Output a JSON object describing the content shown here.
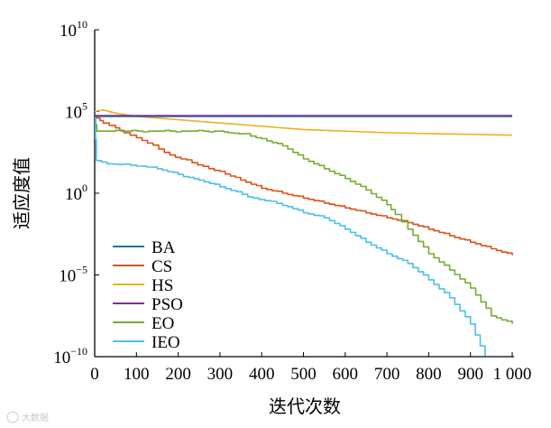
{
  "chart_data": {
    "type": "line",
    "title": "",
    "xlabel": "迭代次数",
    "ylabel": "适应度值",
    "xlim": [
      0,
      1000
    ],
    "ylim_log10": [
      -10,
      10
    ],
    "x_ticks": [
      0,
      100,
      200,
      300,
      400,
      500,
      600,
      700,
      800,
      900,
      1000
    ],
    "x_tick_labels": [
      "0",
      "100",
      "200",
      "300",
      "400",
      "500",
      "600",
      "700",
      "800",
      "900",
      "1 000"
    ],
    "y_ticks_log10": [
      -10,
      -5,
      0,
      5,
      10
    ],
    "y_tick_labels": [
      {
        "base": "10",
        "exp": "−10"
      },
      {
        "base": "10",
        "exp": "−5"
      },
      {
        "base": "10",
        "exp": "0"
      },
      {
        "base": "10",
        "exp": "5"
      },
      {
        "base": "10",
        "exp": "10"
      }
    ],
    "legend_position": "bottom-left",
    "series": [
      {
        "name": "BA",
        "color": "#1f6fb2",
        "step": false,
        "points": [
          [
            0,
            4.7
          ],
          [
            3,
            4.7
          ],
          [
            1000,
            4.7
          ]
        ]
      },
      {
        "name": "CS",
        "color": "#d95319",
        "step": true,
        "points": [
          [
            0,
            4.7
          ],
          [
            5,
            4.6
          ],
          [
            20,
            4.3
          ],
          [
            50,
            4.0
          ],
          [
            70,
            3.7
          ],
          [
            100,
            3.4
          ],
          [
            140,
            2.9
          ],
          [
            180,
            2.3
          ],
          [
            220,
            2.0
          ],
          [
            260,
            1.6
          ],
          [
            300,
            1.3
          ],
          [
            350,
            0.8
          ],
          [
            400,
            0.3
          ],
          [
            450,
            0
          ],
          [
            500,
            -0.3
          ],
          [
            550,
            -0.6
          ],
          [
            600,
            -0.9
          ],
          [
            650,
            -1.2
          ],
          [
            700,
            -1.5
          ],
          [
            750,
            -1.8
          ],
          [
            800,
            -2.2
          ],
          [
            850,
            -2.6
          ],
          [
            900,
            -3.0
          ],
          [
            950,
            -3.4
          ],
          [
            1000,
            -3.8
          ]
        ]
      },
      {
        "name": "HS",
        "color": "#edb120",
        "step": false,
        "points": [
          [
            0,
            5.0
          ],
          [
            20,
            5.1
          ],
          [
            50,
            4.9
          ],
          [
            100,
            4.7
          ],
          [
            150,
            4.6
          ],
          [
            200,
            4.5
          ],
          [
            300,
            4.3
          ],
          [
            400,
            4.1
          ],
          [
            500,
            3.9
          ],
          [
            600,
            3.8
          ],
          [
            700,
            3.7
          ],
          [
            800,
            3.65
          ],
          [
            900,
            3.6
          ],
          [
            1000,
            3.55
          ]
        ]
      },
      {
        "name": "PSO",
        "color": "#7e2f8e",
        "step": false,
        "points": [
          [
            0,
            4.75
          ],
          [
            2,
            4.75
          ],
          [
            1000,
            4.75
          ]
        ]
      },
      {
        "name": "EO",
        "color": "#77ac30",
        "step": true,
        "points": [
          [
            0,
            4.6
          ],
          [
            5,
            3.8
          ],
          [
            50,
            3.8
          ],
          [
            300,
            3.8
          ],
          [
            320,
            3.7
          ],
          [
            360,
            3.6
          ],
          [
            400,
            3.3
          ],
          [
            450,
            2.9
          ],
          [
            500,
            2.1
          ],
          [
            550,
            1.5
          ],
          [
            600,
            0.9
          ],
          [
            650,
            0.2
          ],
          [
            700,
            -0.7
          ],
          [
            720,
            -1.3
          ],
          [
            750,
            -2.2
          ],
          [
            800,
            -3.7
          ],
          [
            850,
            -4.7
          ],
          [
            900,
            -5.8
          ],
          [
            950,
            -7.5
          ],
          [
            1000,
            -8.0
          ]
        ]
      },
      {
        "name": "IEO",
        "color": "#4dbeee",
        "step": true,
        "points": [
          [
            0,
            4.6
          ],
          [
            4,
            2.0
          ],
          [
            30,
            1.8
          ],
          [
            100,
            1.7
          ],
          [
            150,
            1.5
          ],
          [
            250,
            0.8
          ],
          [
            300,
            0.4
          ],
          [
            380,
            -0.3
          ],
          [
            450,
            -0.7
          ],
          [
            500,
            -1.2
          ],
          [
            550,
            -1.5
          ],
          [
            600,
            -2.2
          ],
          [
            650,
            -3.0
          ],
          [
            700,
            -3.7
          ],
          [
            750,
            -4.3
          ],
          [
            800,
            -5.3
          ],
          [
            850,
            -6.4
          ],
          [
            900,
            -8.0
          ],
          [
            935,
            -10.0
          ]
        ]
      }
    ]
  }
}
